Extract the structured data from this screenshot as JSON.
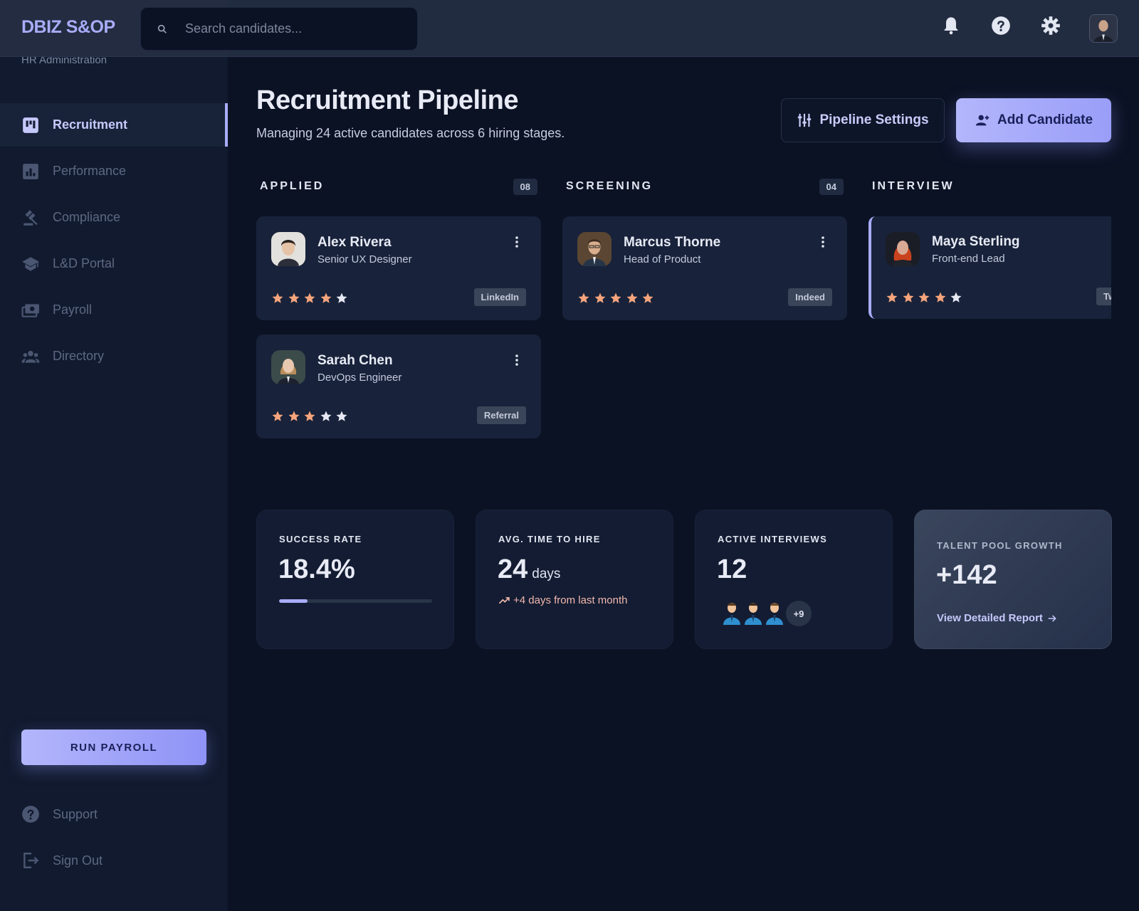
{
  "app": {
    "logo": "DBIZ S&OP",
    "subtitle": "HR Administration"
  },
  "search": {
    "placeholder": "Search candidates..."
  },
  "sidebar": {
    "items": [
      {
        "label": "Recruitment",
        "icon": "kanban-icon",
        "active": true
      },
      {
        "label": "Performance",
        "icon": "chart-icon"
      },
      {
        "label": "Compliance",
        "icon": "gavel-icon"
      },
      {
        "label": "L&D Portal",
        "icon": "school-icon"
      },
      {
        "label": "Payroll",
        "icon": "payments-icon"
      },
      {
        "label": "Directory",
        "icon": "group-icon"
      }
    ],
    "run_payroll": "RUN PAYROLL",
    "bottom": [
      {
        "label": "Support",
        "icon": "help-icon"
      },
      {
        "label": "Sign Out",
        "icon": "logout-icon"
      }
    ]
  },
  "header": {
    "title": "Recruitment Pipeline",
    "subtitle": "Managing 24 active candidates across 6 hiring stages.",
    "settings_label": "Pipeline Settings",
    "add_label": "Add Candidate"
  },
  "columns": [
    {
      "title": "APPLIED",
      "count": "08",
      "cards": [
        {
          "name": "Alex Rivera",
          "role": "Senior UX Designer",
          "rating": 4,
          "source": "LinkedIn"
        },
        {
          "name": "Sarah Chen",
          "role": "DevOps Engineer",
          "rating": 3,
          "source": "Referral"
        }
      ]
    },
    {
      "title": "SCREENING",
      "count": "04",
      "cards": [
        {
          "name": "Marcus Thorne",
          "role": "Head of Product",
          "rating": 5,
          "source": "Indeed"
        }
      ]
    },
    {
      "title": "INTERVIEW",
      "count": "",
      "cards": [
        {
          "name": "Maya Sterling",
          "role": "Front-end Lead",
          "rating": 4,
          "source": "Tw"
        }
      ]
    }
  ],
  "stats": {
    "success": {
      "label": "SUCCESS RATE",
      "value": "18.4%",
      "progress": 0.184
    },
    "time": {
      "label": "AVG. TIME TO HIRE",
      "value": "24",
      "unit": "days",
      "trend": "+4 days from last month"
    },
    "interviews": {
      "label": "ACTIVE INTERVIEWS",
      "value": "12",
      "more": "+9"
    },
    "talent": {
      "label": "TALENT POOL GROWTH",
      "value": "+142",
      "link": "View Detailed Report"
    }
  },
  "colors": {
    "accent": "#a8acf8",
    "star_filled": "#f5a47c",
    "star_empty": "#e6e9f4",
    "trend": "#f2b8ae"
  }
}
